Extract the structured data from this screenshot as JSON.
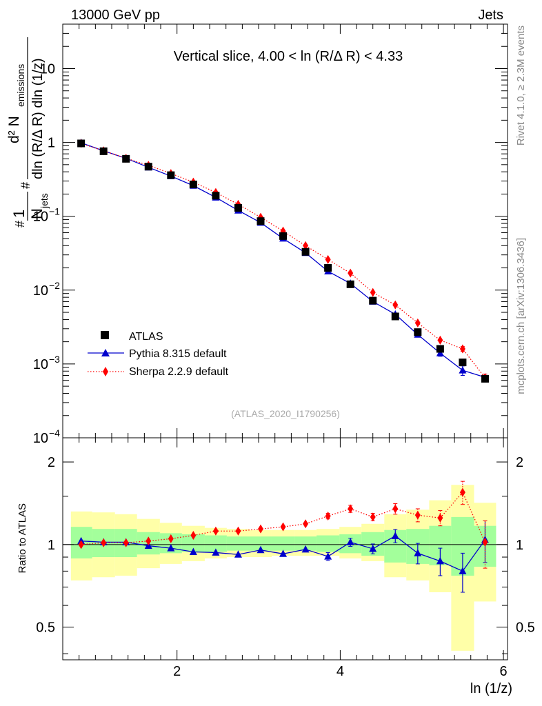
{
  "header": {
    "left": "13000 GeV pp",
    "right": "Jets",
    "side_top": "Rivet 4.1.0, ≥ 2.3M events",
    "side_bottom": "mcplots.cern.ch [arXiv:1306.3436]"
  },
  "chart_data": [
    {
      "type": "scatter",
      "title": "Vertical slice, 4.00 < ln (R/Δ R) < 4.33",
      "watermark": "(ATLAS_2020_I1790256)",
      "xlabel": "ln (1/z)",
      "ylabel": "#1/N_jets #d^2 N_emissions / dln (R/Δ R) dln (1/z)",
      "ylabel_parts": {
        "hash1": "#",
        "one": "1",
        "N": "N",
        "jets": "jets",
        "hash2": "#",
        "d2": "d² N",
        "emissions": "emissions",
        "denom": "dln (R/Δ R) dln (1/z)"
      },
      "yscale": "log",
      "xlim": [
        0.6,
        6.05
      ],
      "ylim": [
        0.0001,
        40
      ],
      "y_ticks": [
        {
          "value": 0.0001,
          "label": "10",
          "exp": "−4"
        },
        {
          "value": 0.001,
          "label": "10",
          "exp": "−3"
        },
        {
          "value": 0.01,
          "label": "10",
          "exp": "−2"
        },
        {
          "value": 0.1,
          "label": "10",
          "exp": "−1"
        },
        {
          "value": 1,
          "label": "1",
          "exp": ""
        },
        {
          "value": 10,
          "label": "10",
          "exp": ""
        }
      ],
      "legend_position": "bottom-left",
      "x": [
        0.825,
        1.1,
        1.375,
        1.65,
        1.925,
        2.2,
        2.475,
        2.75,
        3.025,
        3.3,
        3.575,
        3.85,
        4.125,
        4.4,
        4.675,
        4.95,
        5.225,
        5.5,
        5.775
      ],
      "series": [
        {
          "name": "ATLAS",
          "style": "black-square",
          "values": [
            0.97,
            0.76,
            0.6,
            0.47,
            0.36,
            0.27,
            0.19,
            0.13,
            0.086,
            0.054,
            0.033,
            0.02,
            0.012,
            0.0072,
            0.0044,
            0.0027,
            0.0016,
            0.00105,
            0.00063
          ]
        },
        {
          "name": "Pythia 8.315 default",
          "style": "blue-triangle-solid",
          "values": [
            0.99,
            0.77,
            0.61,
            0.46,
            0.35,
            0.26,
            0.18,
            0.12,
            0.082,
            0.05,
            0.032,
            0.018,
            0.0123,
            0.007,
            0.0047,
            0.0025,
            0.0014,
            0.00082,
            0.00066
          ],
          "errors": [
            0,
            0,
            0,
            0,
            0,
            0,
            0,
            0,
            0,
            0,
            0,
            0,
            0,
            0,
            0,
            0,
            0.00013,
            0.00012,
            7e-05
          ]
        },
        {
          "name": "Sherpa 2.2.9 default",
          "style": "red-diamond-dotted",
          "values": [
            0.97,
            0.77,
            0.61,
            0.49,
            0.38,
            0.29,
            0.21,
            0.145,
            0.097,
            0.063,
            0.04,
            0.026,
            0.017,
            0.0093,
            0.0063,
            0.0036,
            0.0021,
            0.0016,
            0.00065
          ],
          "errors": [
            0,
            0,
            0,
            0,
            0,
            0,
            0,
            0,
            0,
            0,
            0,
            0,
            0,
            0,
            0,
            0,
            0,
            0.00012,
            8e-05
          ]
        }
      ]
    },
    {
      "type": "scatter",
      "ylabel": "Ratio to ATLAS",
      "xlabel": "ln (1/z)",
      "yscale": "log",
      "xlim": [
        0.6,
        6.05
      ],
      "ylim": [
        0.38,
        2.45
      ],
      "y_ticks": [
        {
          "value": 0.5,
          "label": "0.5"
        },
        {
          "value": 1,
          "label": "1"
        },
        {
          "value": 2,
          "label": "2"
        }
      ],
      "x_ticks": [
        {
          "value": 2,
          "label": "2"
        },
        {
          "value": 4,
          "label": "4"
        },
        {
          "value": 6,
          "label": "6"
        }
      ],
      "bin_edges": [
        0.7,
        0.96,
        1.24,
        1.51,
        1.79,
        2.06,
        2.34,
        2.61,
        2.89,
        3.16,
        3.44,
        3.71,
        3.99,
        4.26,
        4.54,
        4.81,
        5.09,
        5.36,
        5.64,
        5.91
      ],
      "band_green": [
        [
          0.89,
          1.16
        ],
        [
          0.9,
          1.14
        ],
        [
          0.9,
          1.14
        ],
        [
          0.92,
          1.11
        ],
        [
          0.93,
          1.1
        ],
        [
          0.94,
          1.09
        ],
        [
          0.94,
          1.08
        ],
        [
          0.95,
          1.07
        ],
        [
          0.95,
          1.07
        ],
        [
          0.95,
          1.07
        ],
        [
          0.95,
          1.07
        ],
        [
          0.94,
          1.08
        ],
        [
          0.93,
          1.09
        ],
        [
          0.91,
          1.11
        ],
        [
          0.86,
          1.13
        ],
        [
          0.85,
          1.14
        ],
        [
          0.84,
          1.17
        ],
        [
          0.77,
          1.26
        ],
        [
          0.83,
          1.17
        ]
      ],
      "band_yellow": [
        [
          0.74,
          1.32
        ],
        [
          0.76,
          1.31
        ],
        [
          0.77,
          1.29
        ],
        [
          0.82,
          1.24
        ],
        [
          0.85,
          1.2
        ],
        [
          0.87,
          1.17
        ],
        [
          0.89,
          1.15
        ],
        [
          0.9,
          1.14
        ],
        [
          0.9,
          1.13
        ],
        [
          0.91,
          1.13
        ],
        [
          0.91,
          1.13
        ],
        [
          0.91,
          1.14
        ],
        [
          0.89,
          1.16
        ],
        [
          0.87,
          1.19
        ],
        [
          0.76,
          1.29
        ],
        [
          0.74,
          1.34
        ],
        [
          0.67,
          1.45
        ],
        [
          0.41,
          1.65
        ],
        [
          0.62,
          1.42
        ]
      ],
      "reference_line": 1,
      "x": [
        0.825,
        1.1,
        1.375,
        1.65,
        1.925,
        2.2,
        2.475,
        2.75,
        3.025,
        3.3,
        3.575,
        3.85,
        4.125,
        4.4,
        4.675,
        4.95,
        5.225,
        5.5,
        5.775
      ],
      "series": [
        {
          "name": "Pythia 8.315 default",
          "style": "blue-triangle-solid",
          "values": [
            1.03,
            1.02,
            1.02,
            0.99,
            0.97,
            0.94,
            0.935,
            0.92,
            0.955,
            0.925,
            0.96,
            0.905,
            1.02,
            0.965,
            1.075,
            0.93,
            0.87,
            0.8,
            1.04
          ],
          "errors": [
            0,
            0,
            0,
            0,
            0,
            0,
            0,
            0,
            0,
            0,
            0,
            0.03,
            0.035,
            0.04,
            0.06,
            0.08,
            0.1,
            0.13,
            0.18
          ]
        },
        {
          "name": "Sherpa 2.2.9 default",
          "style": "red-diamond-dotted",
          "values": [
            1.0,
            1.015,
            1.015,
            1.03,
            1.05,
            1.08,
            1.12,
            1.12,
            1.14,
            1.16,
            1.19,
            1.27,
            1.35,
            1.26,
            1.35,
            1.28,
            1.25,
            1.55,
            1.02
          ],
          "errors": [
            0,
            0,
            0,
            0,
            0,
            0,
            0,
            0,
            0,
            0,
            0,
            0.03,
            0.04,
            0.04,
            0.06,
            0.07,
            0.08,
            0.15,
            0.2
          ]
        }
      ]
    }
  ]
}
